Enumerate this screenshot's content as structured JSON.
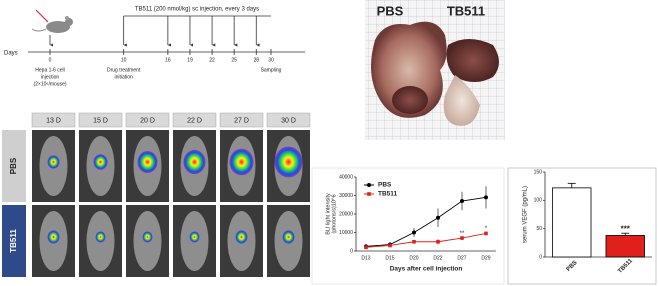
{
  "timeline": {
    "treatment": "TB511 (200 nmol/kg) sc injection, every 3 days",
    "axis_label": "Days",
    "days": [
      0,
      10,
      16,
      19,
      22,
      25,
      28,
      30
    ],
    "events": [
      {
        "day": 0,
        "lines": [
          "Hepa 1-6 cell",
          "injection",
          "(2×10⁶/mouse)"
        ]
      },
      {
        "day": 10,
        "lines": [
          "Drug treatment",
          "initiation"
        ]
      },
      {
        "day": 30,
        "lines": [
          "Sampling"
        ]
      }
    ]
  },
  "imaging": {
    "columns": [
      "13 D",
      "15 D",
      "20 D",
      "22 D",
      "27 D",
      "30 D"
    ],
    "rows": [
      "PBS",
      "TB511"
    ]
  },
  "photos": {
    "labels": [
      "PBS",
      "TB511"
    ]
  },
  "chart_data": [
    {
      "type": "line",
      "categories": [
        "D13",
        "D15",
        "D20",
        "D22",
        "D27",
        "D29"
      ],
      "series": [
        {
          "name": "PBS",
          "color": "#000000",
          "marker": "circle",
          "values": [
            2500,
            3500,
            10000,
            18000,
            27000,
            29000
          ],
          "errors": [
            500,
            800,
            2500,
            5000,
            5000,
            6000
          ]
        },
        {
          "name": "TB511",
          "color": "#e0201b",
          "marker": "square",
          "values": [
            2000,
            3000,
            5000,
            5000,
            7000,
            9500
          ],
          "errors": [
            500,
            500,
            1000,
            1500,
            1000,
            1000
          ]
        }
      ],
      "ylim": [
        0,
        40000
      ],
      "yticks": [
        0,
        10000,
        20000,
        30000,
        40000
      ],
      "y_label": [
        "BLI light intensity",
        "(photons/s)10^6"
      ],
      "x_label": "Days after cell injection",
      "annotations": [
        {
          "series": "TB511",
          "category": "D27",
          "text": "**"
        },
        {
          "series": "TB511",
          "category": "D29",
          "text": "*"
        }
      ]
    },
    {
      "type": "bar",
      "categories": [
        "PBS",
        "TB511"
      ],
      "values": [
        122,
        38
      ],
      "errors": [
        8,
        4
      ],
      "colors": [
        "#ffffff",
        "#e0201b"
      ],
      "ylim": [
        0,
        150
      ],
      "yticks": [
        0,
        50,
        100,
        150
      ],
      "y_label": "serum VEGF (pg/mL)",
      "annotations": [
        {
          "category": "TB511",
          "text": "***"
        }
      ]
    }
  ]
}
